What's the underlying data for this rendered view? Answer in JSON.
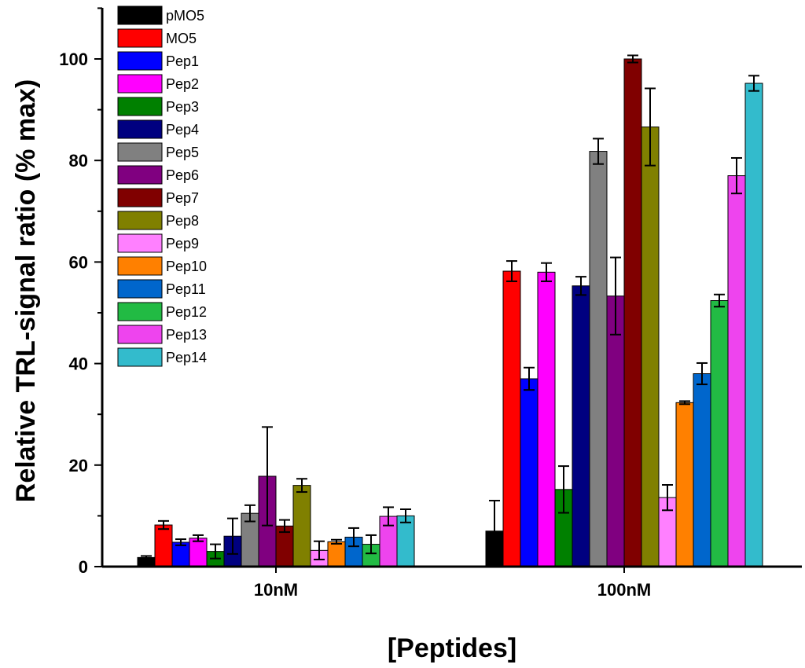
{
  "chart_data": {
    "type": "bar",
    "title": "",
    "xlabel": "[Peptides]",
    "ylabel": "Relative TRL-signal ratio (% max)",
    "ylim": [
      0,
      110
    ],
    "yticks": [
      "0",
      "20",
      "40",
      "60",
      "80",
      "100"
    ],
    "categories": [
      "10nM",
      "100nM"
    ],
    "legend_position": "top-left",
    "grid": false,
    "series": [
      {
        "name": "pMO5",
        "color": "#000000",
        "values": [
          1.8,
          7.0
        ],
        "errors": [
          0.3,
          6.0
        ]
      },
      {
        "name": "MO5",
        "color": "#ff0000",
        "values": [
          8.2,
          58.2
        ],
        "errors": [
          0.8,
          2.0
        ]
      },
      {
        "name": "Pep1",
        "color": "#0000ff",
        "values": [
          4.8,
          37.0
        ],
        "errors": [
          0.6,
          2.2
        ]
      },
      {
        "name": "Pep2",
        "color": "#ff00ff",
        "values": [
          5.6,
          58.0
        ],
        "errors": [
          0.6,
          1.8
        ]
      },
      {
        "name": "Pep3",
        "color": "#008000",
        "values": [
          3.0,
          15.2
        ],
        "errors": [
          1.4,
          4.6
        ]
      },
      {
        "name": "Pep4",
        "color": "#000080",
        "values": [
          6.0,
          55.3
        ],
        "errors": [
          3.5,
          1.8
        ]
      },
      {
        "name": "Pep5",
        "color": "#808080",
        "values": [
          10.5,
          81.8
        ],
        "errors": [
          1.6,
          2.5
        ]
      },
      {
        "name": "Pep6",
        "color": "#800080",
        "values": [
          17.8,
          53.3
        ],
        "errors": [
          9.7,
          7.6
        ]
      },
      {
        "name": "Pep7",
        "color": "#800000",
        "values": [
          8.0,
          100.0
        ],
        "errors": [
          1.2,
          0.7
        ]
      },
      {
        "name": "Pep8",
        "color": "#808000",
        "values": [
          16.0,
          86.6
        ],
        "errors": [
          1.3,
          7.6
        ]
      },
      {
        "name": "Pep9",
        "color": "#ff80ff",
        "values": [
          3.2,
          13.6
        ],
        "errors": [
          1.8,
          2.5
        ]
      },
      {
        "name": "Pep10",
        "color": "#ff8000",
        "values": [
          4.9,
          32.3
        ],
        "errors": [
          0.4,
          0.3
        ]
      },
      {
        "name": "Pep11",
        "color": "#0066cc",
        "values": [
          5.8,
          38.0
        ],
        "errors": [
          1.8,
          2.1
        ]
      },
      {
        "name": "Pep12",
        "color": "#22bb44",
        "values": [
          4.4,
          52.4
        ],
        "errors": [
          1.8,
          1.2
        ]
      },
      {
        "name": "Pep13",
        "color": "#ee44ee",
        "values": [
          9.9,
          77.0
        ],
        "errors": [
          1.8,
          3.5
        ]
      },
      {
        "name": "Pep14",
        "color": "#33bbcc",
        "values": [
          10.0,
          95.2
        ],
        "errors": [
          1.3,
          1.5
        ]
      }
    ]
  }
}
